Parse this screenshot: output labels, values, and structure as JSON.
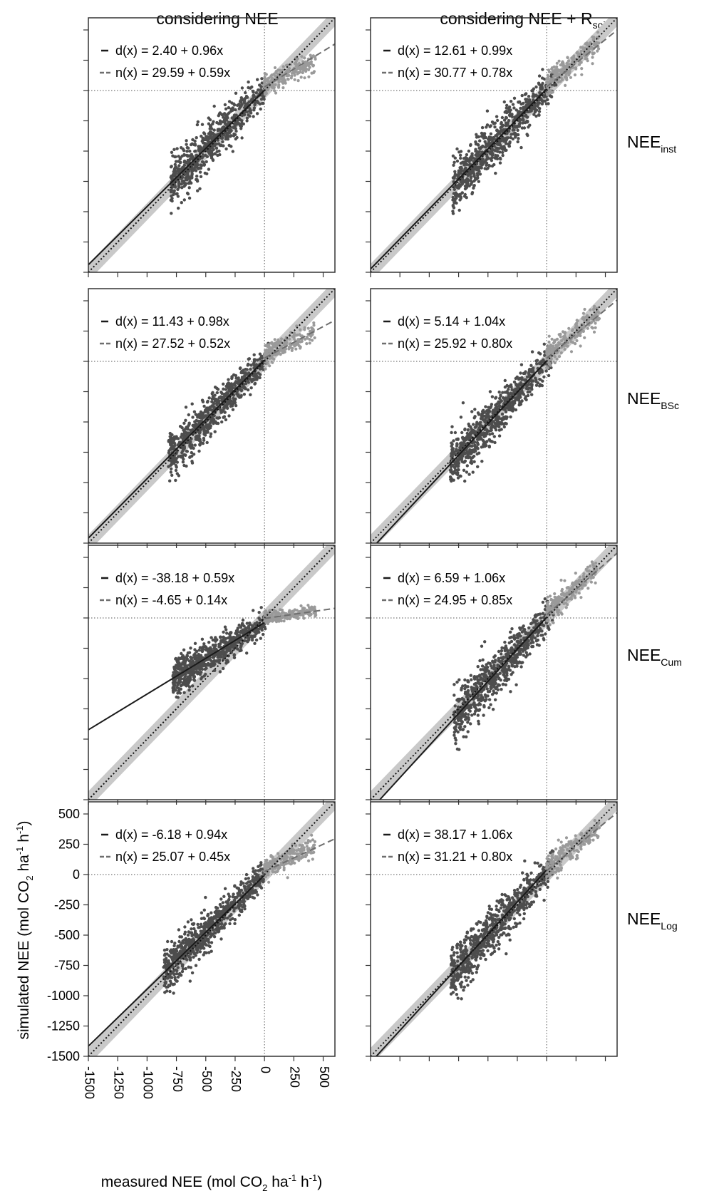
{
  "column_titles": [
    {
      "text": "considering NEE",
      "sub": "",
      "suffix": ""
    },
    {
      "text": "considering NEE + R",
      "sub": "soil",
      "suffix": ""
    }
  ],
  "row_labels": [
    {
      "main": "NEE",
      "sub": "inst"
    },
    {
      "main": "NEE",
      "sub": "BSc"
    },
    {
      "main": "NEE",
      "sub": "Cum"
    },
    {
      "main": "NEE",
      "sub": "Log"
    }
  ],
  "colors": {
    "day_points": "#4d4d4d",
    "night_points": "#9a9a9a",
    "band": "#c9c9c9",
    "day_line": "#1a1a1a",
    "night_line": "#6e6e6e",
    "frame": "#333333"
  },
  "chart_data": {
    "type": "scatter",
    "xlabel": {
      "pre": "measured NEE (mol CO",
      "sub1": "2",
      "mid": " ha",
      "sup1": "-1",
      "mid2": " h",
      "sup2": "-1",
      "post": ")"
    },
    "ylabel": {
      "pre": "simulated NEE (mol CO",
      "sub1": "2",
      "mid": " ha",
      "sup1": "-1",
      "mid2": " h",
      "sup2": "-1",
      "post": ")"
    },
    "xlim": [
      -1500,
      600
    ],
    "ylim": [
      -1500,
      600
    ],
    "ticks": [
      -1500,
      -1250,
      -1000,
      -750,
      -500,
      -250,
      0,
      250,
      500
    ],
    "tick_labels": [
      "-1500",
      "-1250",
      "-1000",
      "-750",
      "-500",
      "-250",
      "0",
      "250",
      "500"
    ],
    "legend_position": "top-left",
    "grid": false,
    "panels": [
      {
        "row": 0,
        "col": 0,
        "day_label": "d(x) = 2.40 + 0.96x",
        "night_label": "n(x) = 29.59 + 0.59x",
        "day_fit": {
          "intercept": 2.4,
          "slope": 0.96
        },
        "night_fit": {
          "intercept": 29.59,
          "slope": 0.59
        },
        "day_cloud": {
          "x_min": -800,
          "x_max": 10,
          "slope": 0.96,
          "intercept": 0,
          "spread": 110
        },
        "night_cloud": {
          "x_min": 0,
          "x_max": 440,
          "slope": 0.45,
          "intercept": 45,
          "spread": 40
        }
      },
      {
        "row": 0,
        "col": 1,
        "day_label": "d(x) = 12.61 + 0.99x",
        "night_label": "n(x) = 30.77 + 0.78x",
        "day_cloud": {
          "x_min": -800,
          "x_max": 80,
          "slope": 1.0,
          "intercept": 0,
          "spread": 120
        },
        "night_cloud": {
          "x_min": 0,
          "x_max": 450,
          "slope": 0.78,
          "intercept": 50,
          "spread": 50
        },
        "day_fit": {
          "intercept": 12.61,
          "slope": 0.99
        },
        "night_fit": {
          "intercept": 30.77,
          "slope": 0.78
        }
      },
      {
        "row": 1,
        "col": 0,
        "day_label": "d(x) = 11.43 + 0.98x",
        "night_label": "n(x) = 27.52 + 0.52x",
        "day_fit": {
          "intercept": 11.43,
          "slope": 0.98
        },
        "night_fit": {
          "intercept": 27.52,
          "slope": 0.52
        },
        "day_cloud": {
          "x_min": -820,
          "x_max": 40,
          "slope": 0.98,
          "intercept": 5,
          "spread": 100
        },
        "night_cloud": {
          "x_min": 0,
          "x_max": 430,
          "slope": 0.45,
          "intercept": 50,
          "spread": 40
        }
      },
      {
        "row": 1,
        "col": 1,
        "day_label": "d(x) = 5.14 + 1.04x",
        "night_label": "n(x) = 25.92 + 0.80x",
        "day_fit": {
          "intercept": 5.14,
          "slope": 1.04
        },
        "night_fit": {
          "intercept": 25.92,
          "slope": 0.8
        },
        "day_cloud": {
          "x_min": -820,
          "x_max": 60,
          "slope": 1.04,
          "intercept": 0,
          "spread": 110
        },
        "night_cloud": {
          "x_min": 0,
          "x_max": 450,
          "slope": 0.8,
          "intercept": 45,
          "spread": 50
        }
      },
      {
        "row": 2,
        "col": 0,
        "day_label": "d(x) = -38.18 + 0.59x",
        "night_label": "n(x) = -4.65 + 0.14x",
        "day_fit": {
          "intercept": -38.18,
          "slope": 0.59
        },
        "night_fit": {
          "intercept": -4.65,
          "slope": 0.14
        },
        "day_cloud": {
          "x_min": -780,
          "x_max": 20,
          "slope": 0.59,
          "intercept": -38,
          "spread": 75
        },
        "night_cloud": {
          "x_min": 0,
          "x_max": 440,
          "slope": 0.12,
          "intercept": 5,
          "spread": 25
        }
      },
      {
        "row": 2,
        "col": 1,
        "day_label": "d(x) = 6.59 + 1.06x",
        "night_label": "n(x) = 24.95 + 0.85x",
        "day_fit": {
          "intercept": 6.59,
          "slope": 1.06
        },
        "night_fit": {
          "intercept": 24.95,
          "slope": 0.85
        },
        "day_cloud": {
          "x_min": -790,
          "x_max": 60,
          "slope": 1.06,
          "intercept": 0,
          "spread": 120
        },
        "night_cloud": {
          "x_min": 0,
          "x_max": 440,
          "slope": 0.85,
          "intercept": 40,
          "spread": 50
        }
      },
      {
        "row": 3,
        "col": 0,
        "day_label": "d(x) = -6.18 + 0.94x",
        "night_label": "n(x) = 25.07 + 0.45x",
        "day_fit": {
          "intercept": -6.18,
          "slope": 0.94
        },
        "night_fit": {
          "intercept": 25.07,
          "slope": 0.45
        },
        "day_cloud": {
          "x_min": -860,
          "x_max": 20,
          "slope": 0.94,
          "intercept": -5,
          "spread": 100
        },
        "night_cloud": {
          "x_min": 0,
          "x_max": 430,
          "slope": 0.45,
          "intercept": 40,
          "spread": 40
        }
      },
      {
        "row": 3,
        "col": 1,
        "day_label": "d(x) = 38.17 + 1.06x",
        "night_label": "n(x) = 31.21 + 0.80x",
        "day_fit": {
          "intercept": 38.17,
          "slope": 1.06
        },
        "night_fit": {
          "intercept": 31.21,
          "slope": 0.8
        },
        "day_cloud": {
          "x_min": -820,
          "x_max": 60,
          "slope": 1.06,
          "intercept": 20,
          "spread": 120
        },
        "night_cloud": {
          "x_min": 0,
          "x_max": 450,
          "slope": 0.8,
          "intercept": 45,
          "spread": 50
        }
      }
    ]
  }
}
